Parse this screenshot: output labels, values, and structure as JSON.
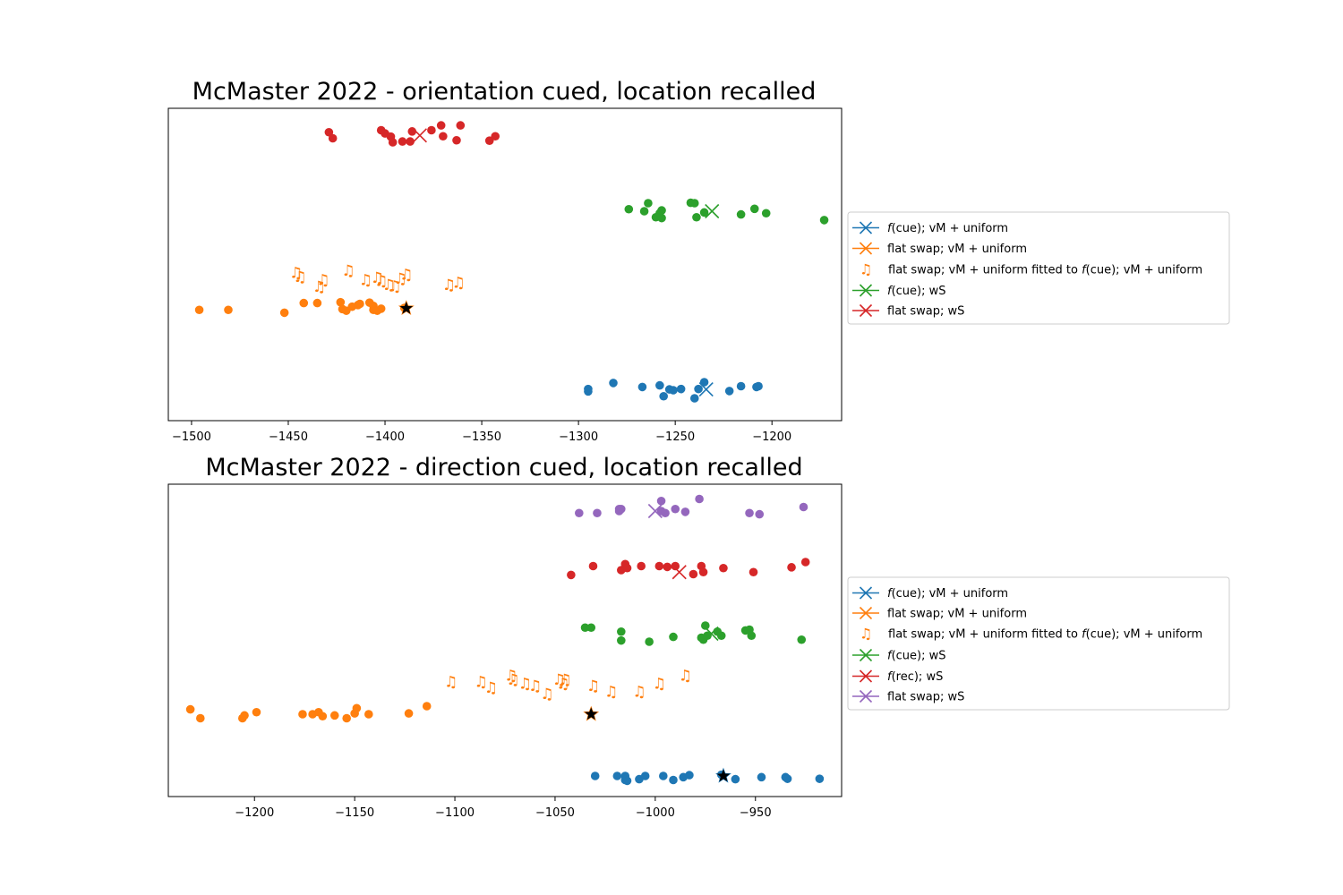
{
  "chart_data": [
    {
      "type": "scatter",
      "title": "McMaster 2022 - orientation cued, location recalled",
      "xlabel": "",
      "ylabel": "",
      "xlim": [
        -1512,
        -1164
      ],
      "x_ticks": [
        -1500,
        -1450,
        -1400,
        -1350,
        -1300,
        -1250,
        -1200
      ],
      "x_tick_labels": [
        "−1500",
        "−1450",
        "−1400",
        "−1350",
        "−1300",
        "−1250",
        "−1200"
      ],
      "y_ticks_visible": false,
      "grid": false,
      "legend_placement": "outside-right",
      "legend": [
        {
          "label_parts": [
            {
              "t": "f",
              "i": true
            },
            {
              "t": "(cue); vM + uniform",
              "i": false
            }
          ],
          "marker": "x",
          "color": "#1f77b4"
        },
        {
          "label_parts": [
            {
              "t": "flat swap; vM + uniform",
              "i": false
            }
          ],
          "marker": "x",
          "color": "#ff7f0e"
        },
        {
          "label_parts": [
            {
              "t": "flat swap; vM + uniform fitted to ",
              "i": false
            },
            {
              "t": "f",
              "i": true
            },
            {
              "t": "(cue); vM + uniform",
              "i": false
            }
          ],
          "marker": "note",
          "color": "#ff7f0e"
        },
        {
          "label_parts": [
            {
              "t": "f",
              "i": true
            },
            {
              "t": "(cue); wS",
              "i": false
            }
          ],
          "marker": "x",
          "color": "#2ca02c"
        },
        {
          "label_parts": [
            {
              "t": "flat swap; wS",
              "i": false
            }
          ],
          "marker": "x",
          "color": "#d62728"
        }
      ],
      "series": [
        {
          "color": "#1f77b4",
          "marker": "circle",
          "row": 0,
          "points": [
            [
              -1295,
              0.03
            ],
            [
              -1295,
              -0.03
            ],
            [
              -1282,
              0.18
            ],
            [
              -1267,
              0.08
            ],
            [
              -1258,
              0.12
            ],
            [
              -1256,
              -0.15
            ],
            [
              -1253,
              0.02
            ],
            [
              -1251,
              0.0
            ],
            [
              -1247,
              0.03
            ],
            [
              -1240,
              -0.2
            ],
            [
              -1238,
              0.03
            ],
            [
              -1235,
              0.2
            ],
            [
              -1222,
              -0.02
            ],
            [
              -1216,
              0.1
            ],
            [
              -1208,
              0.08
            ],
            [
              -1207,
              0.1
            ]
          ],
          "means": [
            {
              "x": -1234,
              "y": 0.02,
              "marker": "x"
            }
          ]
        },
        {
          "color": "#ff7f0e",
          "marker": "circle",
          "row": 1,
          "points": [
            [
              -1496,
              -0.05
            ],
            [
              -1481,
              -0.05
            ],
            [
              -1452,
              -0.12
            ],
            [
              -1442,
              0.12
            ],
            [
              -1435,
              0.12
            ],
            [
              -1423,
              0.14
            ],
            [
              -1422,
              -0.03
            ],
            [
              -1420,
              -0.07
            ],
            [
              -1417,
              0.03
            ],
            [
              -1414,
              0.07
            ],
            [
              -1413,
              0.1
            ],
            [
              -1408,
              0.13
            ],
            [
              -1406,
              0.05
            ],
            [
              -1406,
              -0.05
            ],
            [
              -1404,
              -0.07
            ],
            [
              -1402,
              -0.02
            ],
            [
              -1390,
              0.0
            ]
          ],
          "means": [
            {
              "x": -1389,
              "y": -0.01,
              "marker": "star"
            }
          ]
        },
        {
          "color": "#ff7f0e",
          "marker": "note",
          "row": 2,
          "points": [
            [
              -1446,
              0.3
            ],
            [
              -1444,
              0.2
            ],
            [
              -1434,
              -0.05
            ],
            [
              -1432,
              0.12
            ],
            [
              -1419,
              0.35
            ],
            [
              -1410,
              0.12
            ],
            [
              -1404,
              0.18
            ],
            [
              -1402,
              0.1
            ],
            [
              -1398,
              0.0
            ],
            [
              -1395,
              -0.03
            ],
            [
              -1392,
              0.15
            ],
            [
              -1389,
              0.25
            ],
            [
              -1367,
              0.0
            ],
            [
              -1362,
              0.05
            ]
          ],
          "means": []
        },
        {
          "color": "#2ca02c",
          "marker": "circle",
          "row": 3,
          "points": [
            [
              -1274,
              0.05
            ],
            [
              -1264,
              0.2
            ],
            [
              -1266,
              0.0
            ],
            [
              -1260,
              -0.15
            ],
            [
              -1258,
              -0.05
            ],
            [
              -1257,
              -0.17
            ],
            [
              -1257,
              0.02
            ],
            [
              -1242,
              0.21
            ],
            [
              -1240,
              0.2
            ],
            [
              -1239,
              -0.15
            ],
            [
              -1235,
              -0.03
            ],
            [
              -1216,
              -0.08
            ],
            [
              -1209,
              0.06
            ],
            [
              -1203,
              -0.05
            ],
            [
              -1173,
              -0.22
            ]
          ],
          "means": [
            {
              "x": -1231,
              "y": 0.0,
              "marker": "x"
            }
          ]
        },
        {
          "color": "#d62728",
          "marker": "circle",
          "row": 4,
          "points": [
            [
              -1429,
              0.05
            ],
            [
              -1427,
              -0.1
            ],
            [
              -1402,
              0.1
            ],
            [
              -1400,
              0.02
            ],
            [
              -1397,
              -0.06
            ],
            [
              -1396,
              -0.2
            ],
            [
              -1391,
              -0.18
            ],
            [
              -1387,
              -0.18
            ],
            [
              -1386,
              0.07
            ],
            [
              -1376,
              0.1
            ],
            [
              -1371,
              0.22
            ],
            [
              -1370,
              -0.05
            ],
            [
              -1363,
              -0.15
            ],
            [
              -1361,
              0.22
            ],
            [
              -1346,
              -0.16
            ],
            [
              -1343,
              -0.05
            ]
          ],
          "means": [
            {
              "x": -1382,
              "y": -0.03,
              "marker": "x"
            }
          ]
        }
      ]
    },
    {
      "type": "scatter",
      "title": "McMaster 2022 - direction cued, location recalled",
      "xlabel": "",
      "ylabel": "",
      "xlim": [
        -1243,
        -907
      ],
      "x_ticks": [
        -1200,
        -1150,
        -1100,
        -1050,
        -1000,
        -950
      ],
      "x_tick_labels": [
        "−1200",
        "−1150",
        "−1100",
        "−1050",
        "−1000",
        "−950"
      ],
      "y_ticks_visible": false,
      "grid": false,
      "legend_placement": "outside-right",
      "legend": [
        {
          "label_parts": [
            {
              "t": "f",
              "i": true
            },
            {
              "t": "(cue); vM + uniform",
              "i": false
            }
          ],
          "marker": "x",
          "color": "#1f77b4"
        },
        {
          "label_parts": [
            {
              "t": "flat swap; vM + uniform",
              "i": false
            }
          ],
          "marker": "x",
          "color": "#ff7f0e"
        },
        {
          "label_parts": [
            {
              "t": "flat swap; vM + uniform fitted to ",
              "i": false
            },
            {
              "t": "f",
              "i": true
            },
            {
              "t": "(cue); vM + uniform",
              "i": false
            }
          ],
          "marker": "note",
          "color": "#ff7f0e"
        },
        {
          "label_parts": [
            {
              "t": "f",
              "i": true
            },
            {
              "t": "(cue); wS",
              "i": false
            }
          ],
          "marker": "x",
          "color": "#2ca02c"
        },
        {
          "label_parts": [
            {
              "t": "f",
              "i": true
            },
            {
              "t": "(rec); wS",
              "i": false
            }
          ],
          "marker": "x",
          "color": "#d62728"
        },
        {
          "label_parts": [
            {
              "t": "flat swap; wS",
              "i": false
            }
          ],
          "marker": "x",
          "color": "#9467bd"
        }
      ],
      "series": [
        {
          "color": "#1f77b4",
          "marker": "circle",
          "row": 0,
          "points": [
            [
              -1030,
              0.0
            ],
            [
              -1019,
              0.0
            ],
            [
              -1015,
              0.0
            ],
            [
              -1015,
              -0.1
            ],
            [
              -1014,
              -0.12
            ],
            [
              -1008,
              -0.08
            ],
            [
              -1005,
              0.0
            ],
            [
              -996,
              0.0
            ],
            [
              -991,
              -0.1
            ],
            [
              -986,
              -0.03
            ],
            [
              -983,
              0.02
            ],
            [
              -967,
              0.03
            ],
            [
              -960,
              -0.08
            ],
            [
              -947,
              -0.03
            ],
            [
              -935,
              -0.03
            ],
            [
              -934,
              -0.07
            ],
            [
              -918,
              -0.07
            ]
          ],
          "means": [
            {
              "x": -966,
              "y": 0.0,
              "marker": "star"
            }
          ]
        },
        {
          "color": "#ff7f0e",
          "marker": "circle",
          "row": 1,
          "points": [
            [
              -1232,
              0.12
            ],
            [
              -1227,
              -0.1
            ],
            [
              -1206,
              -0.1
            ],
            [
              -1205,
              -0.03
            ],
            [
              -1199,
              0.05
            ],
            [
              -1176,
              0.0
            ],
            [
              -1171,
              0.0
            ],
            [
              -1168,
              0.05
            ],
            [
              -1166,
              -0.05
            ],
            [
              -1160,
              -0.03
            ],
            [
              -1154,
              -0.1
            ],
            [
              -1150,
              0.02
            ],
            [
              -1149,
              0.15
            ],
            [
              -1143,
              0.0
            ],
            [
              -1123,
              0.02
            ],
            [
              -1114,
              0.2
            ]
          ],
          "means": [
            {
              "x": -1032,
              "y": 0.0,
              "marker": "star"
            }
          ]
        },
        {
          "color": "#ff7f0e",
          "marker": "note",
          "row": 2,
          "points": [
            [
              -1102,
              0.3
            ],
            [
              -1087,
              0.3
            ],
            [
              -1082,
              0.15
            ],
            [
              -1072,
              0.45
            ],
            [
              -1071,
              0.35
            ],
            [
              -1065,
              0.25
            ],
            [
              -1060,
              0.2
            ],
            [
              -1054,
              0.0
            ],
            [
              -1048,
              0.35
            ],
            [
              -1046,
              0.25
            ],
            [
              -1045,
              0.35
            ],
            [
              -1031,
              0.2
            ],
            [
              -1022,
              0.05
            ],
            [
              -1008,
              0.05
            ],
            [
              -998,
              0.25
            ],
            [
              -985,
              0.45
            ]
          ],
          "means": []
        },
        {
          "color": "#2ca02c",
          "marker": "circle",
          "row": 3,
          "points": [
            [
              -1035,
              0.15
            ],
            [
              -1032,
              0.15
            ],
            [
              -1017,
              0.05
            ],
            [
              -1017,
              -0.17
            ],
            [
              -1003,
              -0.2
            ],
            [
              -991,
              -0.08
            ],
            [
              -977,
              -0.1
            ],
            [
              -975,
              0.2
            ],
            [
              -976,
              -0.15
            ],
            [
              -974,
              -0.05
            ],
            [
              -969,
              0.05
            ],
            [
              -967,
              -0.05
            ],
            [
              -955,
              0.08
            ],
            [
              -953,
              0.1
            ],
            [
              -952,
              -0.05
            ],
            [
              -927,
              -0.15
            ]
          ],
          "means": [
            {
              "x": -972,
              "y": 0.0,
              "marker": "x"
            }
          ]
        },
        {
          "color": "#d62728",
          "marker": "circle",
          "row": 4,
          "points": [
            [
              -1042,
              -0.12
            ],
            [
              -1031,
              0.1
            ],
            [
              -1017,
              0.0
            ],
            [
              -1015,
              0.15
            ],
            [
              -1014,
              0.05
            ],
            [
              -1007,
              0.1
            ],
            [
              -998,
              0.1
            ],
            [
              -994,
              0.08
            ],
            [
              -990,
              0.1
            ],
            [
              -981,
              -0.1
            ],
            [
              -977,
              0.1
            ],
            [
              -976,
              -0.05
            ],
            [
              -966,
              0.05
            ],
            [
              -951,
              -0.05
            ],
            [
              -932,
              0.07
            ],
            [
              -925,
              0.2
            ]
          ],
          "means": [
            {
              "x": -988,
              "y": -0.05,
              "marker": "x"
            }
          ]
        },
        {
          "color": "#9467bd",
          "marker": "circle",
          "row": 5,
          "points": [
            [
              -1038,
              -0.05
            ],
            [
              -1029,
              -0.05
            ],
            [
              -1018,
              0.05
            ],
            [
              -1018,
              0.0
            ],
            [
              -1017,
              0.05
            ],
            [
              -997,
              0.25
            ],
            [
              -997,
              0.0
            ],
            [
              -995,
              -0.05
            ],
            [
              -990,
              0.05
            ],
            [
              -985,
              -0.02
            ],
            [
              -978,
              0.3
            ],
            [
              -953,
              -0.05
            ],
            [
              -948,
              -0.08
            ],
            [
              -926,
              0.1
            ]
          ],
          "means": [
            {
              "x": -1000,
              "y": 0.0,
              "marker": "x"
            }
          ]
        }
      ]
    }
  ]
}
